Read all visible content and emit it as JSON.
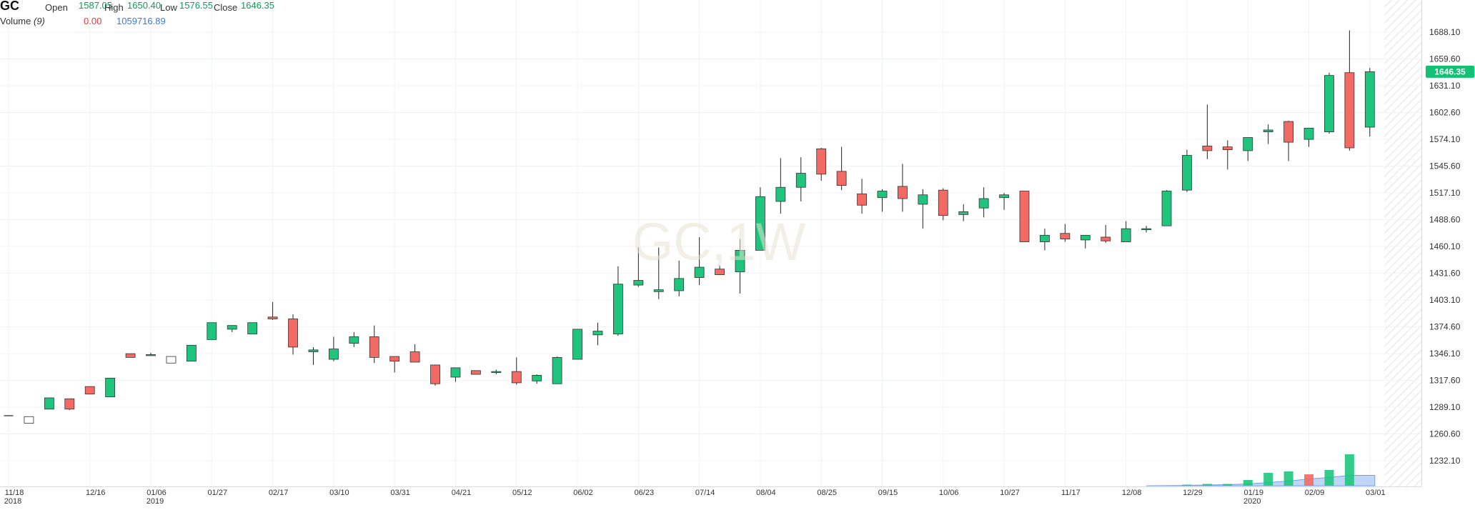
{
  "legend": {
    "symbol": "GC",
    "open_label": "Open",
    "open": "1587.05",
    "high_label": "High",
    "high": "1650.40",
    "low_label": "Low",
    "low": "1576.55",
    "close_label": "Close",
    "close": "1646.35",
    "volume_label": "Volume",
    "volume_period": "(9)",
    "volume_value_1": "0.00",
    "volume_value_2": "1059716.89"
  },
  "watermark": "GC,1W",
  "last_price_label": "1646.35",
  "colors": {
    "up": "#1fc57d",
    "down": "#f26a63",
    "volume_ma": "#a9c8f5",
    "last_price_bg": "#12c173"
  },
  "chart_data": {
    "type": "candlestick",
    "interval": "1W",
    "ylim": [
      1205,
      1706
    ],
    "y_ticks": [
      "1232.10",
      "1260.60",
      "1289.10",
      "1317.60",
      "1346.10",
      "1374.60",
      "1403.10",
      "1431.60",
      "1460.10",
      "1488.60",
      "1517.10",
      "1545.60",
      "1574.10",
      "1602.60",
      "1631.10",
      "1659.60",
      "1688.10"
    ],
    "x_ticks": [
      {
        "label": "11/18",
        "sub": "2018",
        "i": 0
      },
      {
        "label": "12/16",
        "sub": "",
        "i": 4
      },
      {
        "label": "01/06",
        "sub": "2019",
        "i": 7
      },
      {
        "label": "01/27",
        "sub": "",
        "i": 10
      },
      {
        "label": "02/17",
        "sub": "",
        "i": 13
      },
      {
        "label": "03/10",
        "sub": "",
        "i": 16
      },
      {
        "label": "03/31",
        "sub": "",
        "i": 19
      },
      {
        "label": "04/21",
        "sub": "",
        "i": 22
      },
      {
        "label": "05/12",
        "sub": "",
        "i": 25
      },
      {
        "label": "06/02",
        "sub": "",
        "i": 28
      },
      {
        "label": "06/23",
        "sub": "",
        "i": 31
      },
      {
        "label": "07/14",
        "sub": "",
        "i": 34
      },
      {
        "label": "08/04",
        "sub": "",
        "i": 37
      },
      {
        "label": "08/25",
        "sub": "",
        "i": 40
      },
      {
        "label": "09/15",
        "sub": "",
        "i": 43
      },
      {
        "label": "10/06",
        "sub": "",
        "i": 46
      },
      {
        "label": "10/27",
        "sub": "",
        "i": 49
      },
      {
        "label": "11/17",
        "sub": "",
        "i": 52
      },
      {
        "label": "12/08",
        "sub": "",
        "i": 55
      },
      {
        "label": "12/29",
        "sub": "",
        "i": 58
      },
      {
        "label": "01/19",
        "sub": "2020",
        "i": 61
      },
      {
        "label": "02/09",
        "sub": "",
        "i": 64
      },
      {
        "label": "03/01",
        "sub": "",
        "i": 67
      }
    ],
    "candles": [
      {
        "o": 1280,
        "h": 1280,
        "l": 1280,
        "c": 1280
      },
      {
        "o": 1279,
        "h": 1279,
        "l": 1272,
        "c": 1272,
        "hollow": true
      },
      {
        "o": 1287,
        "h": 1299,
        "l": 1287,
        "c": 1299
      },
      {
        "o": 1298,
        "h": 1298,
        "l": 1286,
        "c": 1287
      },
      {
        "o": 1311,
        "h": 1311,
        "l": 1303,
        "c": 1303
      },
      {
        "o": 1300,
        "h": 1320,
        "l": 1300,
        "c": 1320
      },
      {
        "o": 1346,
        "h": 1346,
        "l": 1342,
        "c": 1342
      },
      {
        "o": 1344,
        "h": 1347,
        "l": 1344,
        "c": 1345
      },
      {
        "o": 1343,
        "h": 1343,
        "l": 1336,
        "c": 1336,
        "hollow": true
      },
      {
        "o": 1338,
        "h": 1355,
        "l": 1338,
        "c": 1355
      },
      {
        "o": 1361,
        "h": 1377,
        "l": 1361,
        "c": 1379
      },
      {
        "o": 1372,
        "h": 1376,
        "l": 1369,
        "c": 1376
      },
      {
        "o": 1367,
        "h": 1379,
        "l": 1367,
        "c": 1379
      },
      {
        "o": 1385,
        "h": 1401,
        "l": 1382,
        "c": 1383
      },
      {
        "o": 1383,
        "h": 1388,
        "l": 1345,
        "c": 1353
      },
      {
        "o": 1348,
        "h": 1353,
        "l": 1334,
        "c": 1350
      },
      {
        "o": 1340,
        "h": 1364,
        "l": 1338,
        "c": 1351
      },
      {
        "o": 1357,
        "h": 1369,
        "l": 1353,
        "c": 1364
      },
      {
        "o": 1364,
        "h": 1376,
        "l": 1336,
        "c": 1342
      },
      {
        "o": 1343,
        "h": 1343,
        "l": 1326,
        "c": 1338
      },
      {
        "o": 1348,
        "h": 1356,
        "l": 1339,
        "c": 1337
      },
      {
        "o": 1334,
        "h": 1334,
        "l": 1312,
        "c": 1314
      },
      {
        "o": 1321,
        "h": 1331,
        "l": 1316,
        "c": 1331
      },
      {
        "o": 1328,
        "h": 1328,
        "l": 1324,
        "c": 1324
      },
      {
        "o": 1326,
        "h": 1329,
        "l": 1324,
        "c": 1327
      },
      {
        "o": 1327,
        "h": 1342,
        "l": 1313,
        "c": 1315
      },
      {
        "o": 1317,
        "h": 1324,
        "l": 1314,
        "c": 1323
      },
      {
        "o": 1314,
        "h": 1343,
        "l": 1314,
        "c": 1342
      },
      {
        "o": 1340,
        "h": 1372,
        "l": 1340,
        "c": 1372
      },
      {
        "o": 1366,
        "h": 1379,
        "l": 1355,
        "c": 1370
      },
      {
        "o": 1367,
        "h": 1439,
        "l": 1365,
        "c": 1420
      },
      {
        "o": 1419,
        "h": 1459,
        "l": 1417,
        "c": 1424
      },
      {
        "o": 1412,
        "h": 1459,
        "l": 1404,
        "c": 1414
      },
      {
        "o": 1413,
        "h": 1445,
        "l": 1407,
        "c": 1426
      },
      {
        "o": 1427,
        "h": 1470,
        "l": 1419,
        "c": 1438
      },
      {
        "o": 1436,
        "h": 1440,
        "l": 1433,
        "c": 1430
      },
      {
        "o": 1433,
        "h": 1468,
        "l": 1410,
        "c": 1456
      },
      {
        "o": 1456,
        "h": 1523,
        "l": 1456,
        "c": 1513
      },
      {
        "o": 1508,
        "h": 1554,
        "l": 1495,
        "c": 1523
      },
      {
        "o": 1523,
        "h": 1555,
        "l": 1508,
        "c": 1538
      },
      {
        "o": 1564,
        "h": 1565,
        "l": 1530,
        "c": 1537
      },
      {
        "o": 1540,
        "h": 1566,
        "l": 1520,
        "c": 1525
      },
      {
        "o": 1516,
        "h": 1532,
        "l": 1495,
        "c": 1504
      },
      {
        "o": 1512,
        "h": 1521,
        "l": 1497,
        "c": 1519
      },
      {
        "o": 1524,
        "h": 1548,
        "l": 1497,
        "c": 1511
      },
      {
        "o": 1505,
        "h": 1521,
        "l": 1479,
        "c": 1515
      },
      {
        "o": 1520,
        "h": 1522,
        "l": 1488,
        "c": 1493
      },
      {
        "o": 1494,
        "h": 1505,
        "l": 1487,
        "c": 1497
      },
      {
        "o": 1501,
        "h": 1523,
        "l": 1491,
        "c": 1511
      },
      {
        "o": 1512,
        "h": 1517,
        "l": 1499,
        "c": 1515
      },
      {
        "o": 1519,
        "h": 1519,
        "l": 1467,
        "c": 1465
      },
      {
        "o": 1465,
        "h": 1479,
        "l": 1456,
        "c": 1472
      },
      {
        "o": 1474,
        "h": 1484,
        "l": 1465,
        "c": 1468
      },
      {
        "o": 1467,
        "h": 1472,
        "l": 1458,
        "c": 1472
      },
      {
        "o": 1470,
        "h": 1483,
        "l": 1464,
        "c": 1466
      },
      {
        "o": 1465,
        "h": 1487,
        "l": 1465,
        "c": 1479
      },
      {
        "o": 1478,
        "h": 1482,
        "l": 1475,
        "c": 1479
      },
      {
        "o": 1482,
        "h": 1520,
        "l": 1482,
        "c": 1519
      },
      {
        "o": 1520,
        "h": 1563,
        "l": 1518,
        "c": 1557
      },
      {
        "o": 1567,
        "h": 1611,
        "l": 1553,
        "c": 1562
      },
      {
        "o": 1566,
        "h": 1573,
        "l": 1542,
        "c": 1563
      },
      {
        "o": 1562,
        "h": 1576,
        "l": 1551,
        "c": 1576
      },
      {
        "o": 1582,
        "h": 1590,
        "l": 1569,
        "c": 1584
      },
      {
        "o": 1593,
        "h": 1594,
        "l": 1551,
        "c": 1571
      },
      {
        "o": 1574,
        "h": 1586,
        "l": 1566,
        "c": 1586
      },
      {
        "o": 1582,
        "h": 1645,
        "l": 1580,
        "c": 1642
      },
      {
        "o": 1645,
        "h": 1690,
        "l": 1562,
        "c": 1565
      },
      {
        "o": 1587,
        "h": 1650,
        "l": 1577,
        "c": 1646
      }
    ],
    "volume": [
      {
        "i": 51,
        "v": 0,
        "dir": "down"
      },
      {
        "i": 54,
        "v": 0,
        "dir": "up"
      },
      {
        "i": 57,
        "v": 0,
        "dir": "up"
      },
      {
        "i": 58,
        "v": 1.5,
        "dir": "up"
      },
      {
        "i": 59,
        "v": 2.5,
        "dir": "up"
      },
      {
        "i": 60,
        "v": 2.5,
        "dir": "up"
      },
      {
        "i": 61,
        "v": 8,
        "dir": "up"
      },
      {
        "i": 62,
        "v": 18,
        "dir": "up"
      },
      {
        "i": 63,
        "v": 20,
        "dir": "up"
      },
      {
        "i": 64,
        "v": 16,
        "dir": "down"
      },
      {
        "i": 65,
        "v": 22,
        "dir": "up"
      },
      {
        "i": 66,
        "v": 44,
        "dir": "up"
      },
      {
        "i": 67,
        "v": 0,
        "dir": "up"
      }
    ],
    "volume_ma": [
      {
        "i": 56,
        "v": 0
      },
      {
        "i": 58,
        "v": 0.5
      },
      {
        "i": 60,
        "v": 1.5
      },
      {
        "i": 61,
        "v": 2.5
      },
      {
        "i": 62,
        "v": 4.5
      },
      {
        "i": 63,
        "v": 6.5
      },
      {
        "i": 64,
        "v": 9.5
      },
      {
        "i": 65,
        "v": 11.5
      },
      {
        "i": 66,
        "v": 14.5
      },
      {
        "i": 67,
        "v": 14.5
      }
    ]
  }
}
